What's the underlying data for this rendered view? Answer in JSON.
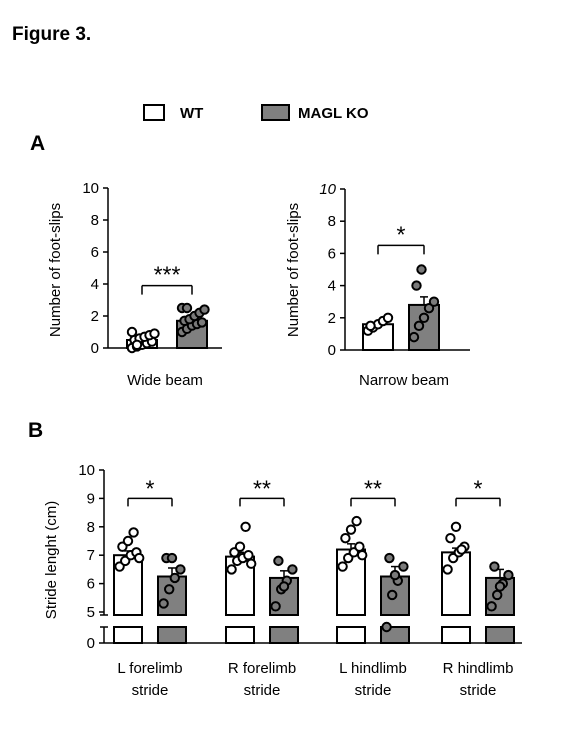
{
  "figure_title": "Figure 3.",
  "legend": [
    {
      "label": "WT",
      "color": "#ffffff"
    },
    {
      "label": "MAGL KO",
      "color": "#808080"
    }
  ],
  "colors": {
    "wt": "#ffffff",
    "ko": "#808080",
    "ink": "#000000"
  },
  "chart_data": [
    {
      "panel": "A",
      "type": "bar",
      "xlabel": "Wide beam",
      "ylabel": "Number of foot-slips",
      "ylim": [
        0,
        10
      ],
      "yticks": [
        0,
        2,
        4,
        6,
        8,
        10
      ],
      "yticklabels": [
        "0",
        "2",
        "4",
        "6",
        "8",
        "10"
      ],
      "series": [
        {
          "name": "WT",
          "mean": 0.5,
          "sem": 0.15,
          "points": [
            0,
            0.1,
            0.2,
            0.3,
            0.4,
            0.5,
            0.6,
            0.7,
            0.8,
            0.9,
            1.0,
            0.2
          ]
        },
        {
          "name": "MAGL KO",
          "mean": 1.7,
          "sem": 0.2,
          "points": [
            1.0,
            1.2,
            1.4,
            1.5,
            1.6,
            1.7,
            1.8,
            2.0,
            2.2,
            2.4,
            2.5,
            2.5
          ]
        }
      ],
      "significance": "***"
    },
    {
      "panel": "A",
      "type": "bar",
      "xlabel": "Narrow beam",
      "ylabel": "Number of foot-slips",
      "ylim": [
        0,
        10
      ],
      "yticks": [
        0,
        2,
        4,
        6,
        8,
        10
      ],
      "yticklabels": [
        "0",
        "2",
        "4",
        "6",
        "8",
        "10"
      ],
      "series": [
        {
          "name": "WT",
          "mean": 1.6,
          "sem": 0.15,
          "points": [
            1.2,
            1.4,
            1.6,
            1.8,
            2.0,
            1.5
          ]
        },
        {
          "name": "MAGL KO",
          "mean": 2.8,
          "sem": 0.5,
          "points": [
            0.8,
            1.5,
            2.0,
            2.6,
            3.0,
            4.0,
            5.0
          ]
        }
      ],
      "significance": "*"
    },
    {
      "panel": "B",
      "type": "bar",
      "ylabel": "Stride lenght (cm)",
      "ylim": [
        0,
        10
      ],
      "axis_break": [
        0,
        5
      ],
      "yticks": [
        0,
        5,
        6,
        7,
        8,
        9,
        10
      ],
      "yticklabels": [
        "0",
        "5",
        "6",
        "7",
        "8",
        "9",
        "10"
      ],
      "categories": [
        {
          "line1": "L forelimb",
          "line2": "stride"
        },
        {
          "line1": "R forelimb",
          "line2": "stride"
        },
        {
          "line1": "L hindlimb",
          "line2": "stride"
        },
        {
          "line1": "R hindlimb",
          "line2": "stride"
        }
      ],
      "series": [
        {
          "name": "WT",
          "means": [
            7.0,
            6.95,
            7.2,
            7.1
          ],
          "sem": [
            0.15,
            0.15,
            0.2,
            0.15
          ],
          "points": [
            [
              6.6,
              6.8,
              7.0,
              7.1,
              7.3,
              7.5,
              7.8,
              6.9
            ],
            [
              6.5,
              6.8,
              6.9,
              7.0,
              7.1,
              7.3,
              8.0,
              6.7
            ],
            [
              6.6,
              6.9,
              7.1,
              7.3,
              7.6,
              7.9,
              8.2,
              7.0
            ],
            [
              6.5,
              6.9,
              7.1,
              7.3,
              7.6,
              8.0,
              7.2
            ]
          ]
        },
        {
          "name": "MAGL KO",
          "means": [
            6.25,
            6.2,
            6.25,
            6.2
          ],
          "sem": [
            0.3,
            0.25,
            0.35,
            0.3
          ],
          "points": [
            [
              5.3,
              5.8,
              6.2,
              6.5,
              6.9,
              6.9
            ],
            [
              5.2,
              5.8,
              6.1,
              6.5,
              6.8,
              5.9
            ],
            [
              4.5,
              5.6,
              6.1,
              6.6,
              6.9,
              6.3
            ],
            [
              5.2,
              5.6,
              6.0,
              6.3,
              6.6,
              5.9
            ]
          ]
        }
      ],
      "significance": [
        "*",
        "**",
        "**",
        "*"
      ]
    }
  ]
}
